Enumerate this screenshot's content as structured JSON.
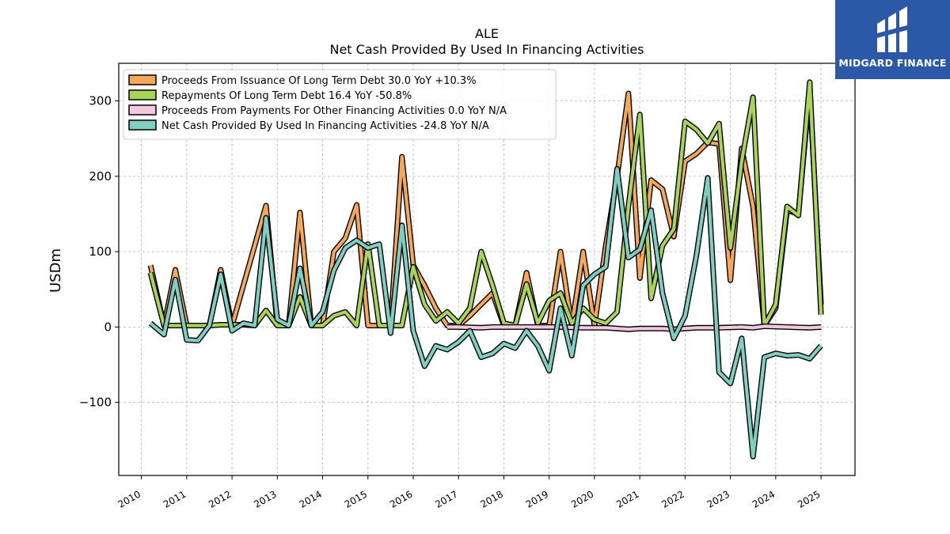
{
  "chart_data": {
    "type": "line",
    "title": "ALE",
    "subtitle": "Net Cash Provided By Used In Financing Activities",
    "ylabel": "USDm",
    "xlabel": "",
    "xlim": [
      2009.5,
      2025.75
    ],
    "ylim": [
      -197,
      350
    ],
    "yticks": [
      -100,
      0,
      100,
      200,
      300
    ],
    "ytick_labels": [
      "−100",
      "0",
      "100",
      "200",
      "300"
    ],
    "xticks": [
      2010,
      2011,
      2012,
      2013,
      2014,
      2015,
      2016,
      2017,
      2018,
      2019,
      2020,
      2021,
      2022,
      2023,
      2024,
      2025
    ],
    "xtick_labels": [
      "2010",
      "2011",
      "2012",
      "2013",
      "2014",
      "2015",
      "2016",
      "2017",
      "2018",
      "2019",
      "2020",
      "2021",
      "2022",
      "2023",
      "2024",
      "2025"
    ],
    "grid": true,
    "legend_position": "top-left",
    "series": [
      {
        "name": "Proceeds From Issuance Of Long Term Debt",
        "legend_label": "Proceeds From Issuance Of Long Term Debt  30.0 YoY +10.3%",
        "color": "#f5a85a",
        "points": [
          [
            2010.2,
            82
          ],
          [
            2010.5,
            2
          ],
          [
            2010.75,
            76
          ],
          [
            2011.0,
            2
          ],
          [
            2011.5,
            2
          ],
          [
            2011.75,
            76
          ],
          [
            2012.0,
            2
          ],
          [
            2012.75,
            161
          ],
          [
            2013.0,
            2
          ],
          [
            2013.25,
            2
          ],
          [
            2013.5,
            152
          ],
          [
            2013.75,
            2
          ],
          [
            2014.0,
            2
          ],
          [
            2014.25,
            100
          ],
          [
            2014.5,
            118
          ],
          [
            2014.75,
            162
          ],
          [
            2015.0,
            2
          ],
          [
            2015.25,
            2
          ],
          [
            2015.5,
            2
          ],
          [
            2015.75,
            226
          ],
          [
            2016.0,
            82
          ],
          [
            2016.25,
            55
          ],
          [
            2016.5,
            25
          ],
          [
            2016.75,
            2
          ],
          [
            2017.0,
            2
          ],
          [
            2017.25,
            15
          ],
          [
            2017.5,
            30
          ],
          [
            2017.75,
            45
          ],
          [
            2018.0,
            2
          ],
          [
            2018.25,
            2
          ],
          [
            2018.5,
            72
          ],
          [
            2018.75,
            2
          ],
          [
            2019.0,
            2
          ],
          [
            2019.25,
            100
          ],
          [
            2019.5,
            2
          ],
          [
            2019.75,
            100
          ],
          [
            2020.0,
            2
          ],
          [
            2020.25,
            108
          ],
          [
            2020.5,
            200
          ],
          [
            2020.75,
            310
          ],
          [
            2021.0,
            65
          ],
          [
            2021.25,
            195
          ],
          [
            2021.5,
            183
          ],
          [
            2021.75,
            120
          ],
          [
            2022.0,
            220
          ],
          [
            2022.25,
            230
          ],
          [
            2022.5,
            245
          ],
          [
            2022.75,
            243
          ],
          [
            2023.0,
            62
          ],
          [
            2023.25,
            237
          ],
          [
            2023.5,
            160
          ],
          [
            2023.75,
            2
          ],
          [
            2024.0,
            25
          ],
          [
            2024.25,
            155
          ],
          [
            2024.5,
            150
          ],
          [
            2024.75,
            315
          ],
          [
            2025.0,
            30
          ]
        ]
      },
      {
        "name": "Repayments Of Long Term Debt",
        "legend_label": "Repayments Of Long Term Debt  16.4 YoY -50.8%",
        "color": "#a8d45a",
        "points": [
          [
            2010.2,
            72
          ],
          [
            2010.5,
            2
          ],
          [
            2010.75,
            2
          ],
          [
            2011.0,
            2
          ],
          [
            2011.5,
            2
          ],
          [
            2011.75,
            3
          ],
          [
            2012.0,
            3
          ],
          [
            2012.25,
            3
          ],
          [
            2012.5,
            2
          ],
          [
            2012.75,
            22
          ],
          [
            2013.0,
            2
          ],
          [
            2013.25,
            2
          ],
          [
            2013.5,
            40
          ],
          [
            2013.75,
            2
          ],
          [
            2014.0,
            2
          ],
          [
            2014.25,
            15
          ],
          [
            2014.5,
            20
          ],
          [
            2014.75,
            2
          ],
          [
            2015.0,
            110
          ],
          [
            2015.25,
            2
          ],
          [
            2015.5,
            2
          ],
          [
            2015.75,
            2
          ],
          [
            2016.0,
            80
          ],
          [
            2016.25,
            30
          ],
          [
            2016.5,
            8
          ],
          [
            2016.75,
            20
          ],
          [
            2017.0,
            5
          ],
          [
            2017.25,
            25
          ],
          [
            2017.5,
            100
          ],
          [
            2017.75,
            55
          ],
          [
            2018.0,
            5
          ],
          [
            2018.25,
            2
          ],
          [
            2018.5,
            57
          ],
          [
            2018.75,
            5
          ],
          [
            2019.0,
            35
          ],
          [
            2019.25,
            45
          ],
          [
            2019.5,
            5
          ],
          [
            2019.75,
            25
          ],
          [
            2020.0,
            10
          ],
          [
            2020.25,
            5
          ],
          [
            2020.5,
            20
          ],
          [
            2020.75,
            160
          ],
          [
            2021.0,
            282
          ],
          [
            2021.25,
            38
          ],
          [
            2021.5,
            108
          ],
          [
            2021.75,
            130
          ],
          [
            2022.0,
            273
          ],
          [
            2022.25,
            262
          ],
          [
            2022.5,
            244
          ],
          [
            2022.75,
            270
          ],
          [
            2023.0,
            105
          ],
          [
            2023.25,
            220
          ],
          [
            2023.5,
            305
          ],
          [
            2023.75,
            2
          ],
          [
            2024.0,
            30
          ],
          [
            2024.25,
            160
          ],
          [
            2024.5,
            148
          ],
          [
            2024.75,
            325
          ],
          [
            2025.0,
            16.4
          ]
        ]
      },
      {
        "name": "Proceeds From Payments For Other Financing Activities",
        "legend_label": "Proceeds From Payments For Other Financing Activities  0.0 YoY N/A",
        "color": "#f6c8e0",
        "points": [
          [
            2016.75,
            0
          ],
          [
            2017.0,
            0
          ],
          [
            2017.5,
            -1
          ],
          [
            2017.75,
            0
          ],
          [
            2018.25,
            0
          ],
          [
            2018.75,
            0
          ],
          [
            2019.25,
            0
          ],
          [
            2019.75,
            -1
          ],
          [
            2020.25,
            -1
          ],
          [
            2020.75,
            -3
          ],
          [
            2021.0,
            -2
          ],
          [
            2021.5,
            -2
          ],
          [
            2021.75,
            -3
          ],
          [
            2022.25,
            -1
          ],
          [
            2022.75,
            -1
          ],
          [
            2023.25,
            0
          ],
          [
            2023.5,
            -1
          ],
          [
            2023.75,
            1
          ],
          [
            2024.25,
            0
          ],
          [
            2024.75,
            -1
          ],
          [
            2025.0,
            0
          ]
        ]
      },
      {
        "name": "Net Cash Provided By Used In Financing Activities",
        "legend_label": "Net Cash Provided By Used In Financing Activities  -24.8 YoY N/A",
        "color": "#80cdc1",
        "points": [
          [
            2010.2,
            5
          ],
          [
            2010.5,
            -10
          ],
          [
            2010.75,
            63
          ],
          [
            2011.0,
            -17
          ],
          [
            2011.25,
            -18
          ],
          [
            2011.5,
            2
          ],
          [
            2011.75,
            70
          ],
          [
            2012.0,
            -5
          ],
          [
            2012.25,
            5
          ],
          [
            2012.5,
            2
          ],
          [
            2012.75,
            145
          ],
          [
            2013.0,
            10
          ],
          [
            2013.25,
            2
          ],
          [
            2013.5,
            78
          ],
          [
            2013.75,
            2
          ],
          [
            2014.0,
            20
          ],
          [
            2014.25,
            75
          ],
          [
            2014.5,
            105
          ],
          [
            2014.75,
            115
          ],
          [
            2015.0,
            105
          ],
          [
            2015.25,
            110
          ],
          [
            2015.5,
            -8
          ],
          [
            2015.75,
            135
          ],
          [
            2016.0,
            -5
          ],
          [
            2016.25,
            -52
          ],
          [
            2016.5,
            -25
          ],
          [
            2016.75,
            -30
          ],
          [
            2017.0,
            -20
          ],
          [
            2017.25,
            -5
          ],
          [
            2017.5,
            -40
          ],
          [
            2017.75,
            -35
          ],
          [
            2018.0,
            -22
          ],
          [
            2018.25,
            -28
          ],
          [
            2018.5,
            -5
          ],
          [
            2018.75,
            -25
          ],
          [
            2019.0,
            -58
          ],
          [
            2019.25,
            25
          ],
          [
            2019.5,
            -38
          ],
          [
            2019.75,
            55
          ],
          [
            2020.0,
            70
          ],
          [
            2020.25,
            80
          ],
          [
            2020.5,
            210
          ],
          [
            2020.75,
            92
          ],
          [
            2021.0,
            103
          ],
          [
            2021.25,
            155
          ],
          [
            2021.5,
            45
          ],
          [
            2021.75,
            -15
          ],
          [
            2022.0,
            15
          ],
          [
            2022.25,
            95
          ],
          [
            2022.5,
            198
          ],
          [
            2022.75,
            -60
          ],
          [
            2023.0,
            -75
          ],
          [
            2023.25,
            -15
          ],
          [
            2023.5,
            -172
          ],
          [
            2023.75,
            -40
          ],
          [
            2024.0,
            -35
          ],
          [
            2024.25,
            -38
          ],
          [
            2024.5,
            -37
          ],
          [
            2024.75,
            -42
          ],
          [
            2025.0,
            -24.8
          ]
        ]
      }
    ]
  },
  "logo": {
    "text": "MIDGARD FINANCE",
    "icon": "midgard-logo-icon",
    "background": "#2c58a8"
  }
}
